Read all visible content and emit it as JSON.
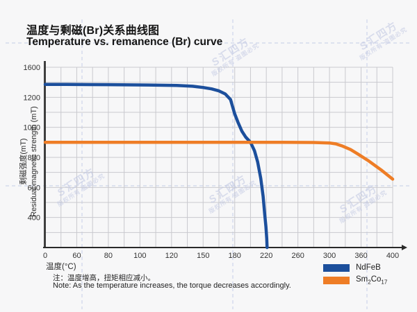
{
  "header": {
    "title_zh": "温度与剩磁(Br)关系曲线图",
    "title_en": "Temperature vs. remanence (Br) curve"
  },
  "chart_data": {
    "type": "line",
    "title": "温度与剩磁(Br)关系曲线图 / Temperature vs. remanence (Br) curve",
    "xlabel": "温度(°C)",
    "ylabel_zh": "剩磁强度(mT)",
    "ylabel_en": "Residual magnetic strength (mT)",
    "x_axis_type": "non-linear, labeled ticks equally spaced",
    "y_axis_type": "non-linear, labeled ticks equally spaced",
    "x_ticks": [
      0,
      60,
      80,
      100,
      120,
      150,
      180,
      220,
      260,
      300,
      360,
      400
    ],
    "y_ticks": [
      0,
      400,
      600,
      800,
      1000,
      1200,
      1600
    ],
    "grid": true,
    "legend_position": "bottom-right",
    "series": [
      {
        "name": "NdFeB",
        "color": "#1c4f9c",
        "points": [
          [
            0,
            1372
          ],
          [
            40,
            1371
          ],
          [
            80,
            1368
          ],
          [
            105,
            1364
          ],
          [
            125,
            1357
          ],
          [
            140,
            1347
          ],
          [
            150,
            1330
          ],
          [
            158,
            1312
          ],
          [
            165,
            1285
          ],
          [
            171,
            1245
          ],
          [
            176,
            1185
          ],
          [
            180,
            1090
          ],
          [
            184,
            1035
          ],
          [
            189,
            975
          ],
          [
            194,
            935
          ],
          [
            200,
            900
          ],
          [
            205,
            845
          ],
          [
            209,
            770
          ],
          [
            213,
            660
          ],
          [
            216,
            540
          ],
          [
            218,
            420
          ],
          [
            219.5,
            280
          ],
          [
            220.5,
            120
          ],
          [
            221,
            0
          ]
        ]
      },
      {
        "name": "Sm2Co17",
        "color": "#ee7d26",
        "points": [
          [
            0,
            900
          ],
          [
            60,
            900
          ],
          [
            120,
            900
          ],
          [
            180,
            900
          ],
          [
            240,
            900
          ],
          [
            280,
            899
          ],
          [
            300,
            896
          ],
          [
            312,
            890
          ],
          [
            325,
            875
          ],
          [
            340,
            852
          ],
          [
            355,
            820
          ],
          [
            370,
            775
          ],
          [
            385,
            718
          ],
          [
            400,
            655
          ]
        ]
      }
    ]
  },
  "legend": {
    "ndfeb": {
      "label": "NdFeB",
      "color": "#1c4f9c"
    },
    "smco": {
      "pre": "Sm",
      "sub1": "2",
      "mid": "Co",
      "sub2": "17",
      "color": "#ee7d26"
    }
  },
  "notes": {
    "zh": "注：温度增高，扭矩相应减小。",
    "en": "Note: As the temperature increases, the torque decreases accordingly."
  },
  "watermark": {
    "logo": "S",
    "brand": "汇四方",
    "line2": "版权所有 盗图必究",
    "color": "#bfc6e2"
  },
  "palette": {
    "background": "#f7f7f8",
    "grid": "#c9c9ce",
    "axis": "#3f3f3f",
    "dash_guides": "#ccd3ea"
  }
}
